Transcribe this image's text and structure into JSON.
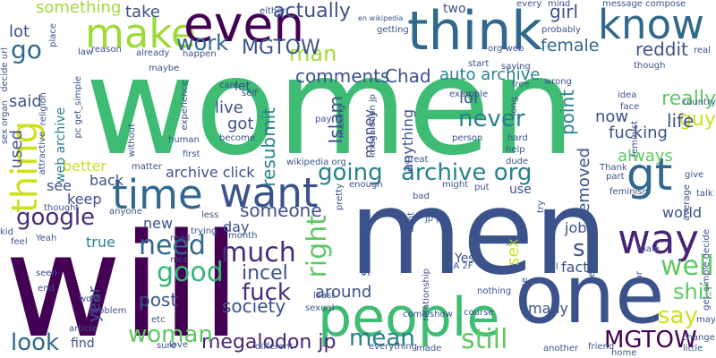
{
  "words": [
    {
      "t": "women",
      "c": "#3fbc73"
    },
    {
      "t": "men",
      "c": "#3b528b"
    },
    {
      "t": "will",
      "c": "#440154"
    },
    {
      "t": "one",
      "c": "#3b528b"
    },
    {
      "t": "people",
      "c": "#3fbc73"
    },
    {
      "t": "think",
      "c": "#31688e"
    },
    {
      "t": "know",
      "c": "#31688e"
    },
    {
      "t": "make",
      "c": "#a0da39"
    },
    {
      "t": "even",
      "c": "#440154"
    },
    {
      "t": "time",
      "c": "#31688e"
    },
    {
      "t": "want",
      "c": "#3b528b"
    },
    {
      "t": "gt",
      "c": "#31688e"
    },
    {
      "t": "way",
      "c": "#482475"
    },
    {
      "t": "thing",
      "c": "#cde11d"
    },
    {
      "t": "archive org",
      "c": "#26828e"
    },
    {
      "t": "going",
      "c": "#26828e"
    },
    {
      "t": "google",
      "c": "#472d7b"
    },
    {
      "t": "need",
      "c": "#31688e"
    },
    {
      "t": "much",
      "c": "#472d7b"
    },
    {
      "t": "good",
      "c": "#35b779"
    },
    {
      "t": "right",
      "c": "#5ec962"
    },
    {
      "t": "well",
      "c": "#5ec962"
    },
    {
      "t": "say",
      "c": "#cde11d"
    },
    {
      "t": "still",
      "c": "#5ec962"
    },
    {
      "t": "mean",
      "c": "#26828e"
    },
    {
      "t": "MGTOW",
      "c": "#440154"
    },
    {
      "t": "megalodon jp",
      "c": "#482475"
    },
    {
      "t": "woman",
      "c": "#5ec962"
    },
    {
      "t": "look",
      "c": "#31688e"
    },
    {
      "t": "shit",
      "c": "#5ec962"
    },
    {
      "t": "fuck",
      "c": "#472d7b"
    },
    {
      "t": "work",
      "c": "#31688e"
    },
    {
      "t": "man",
      "c": "#a0da39"
    },
    {
      "t": "really",
      "c": "#5ec962"
    },
    {
      "t": "guy",
      "c": "#cde11d"
    },
    {
      "t": "life",
      "c": "#3b528b"
    },
    {
      "t": "never",
      "c": "#26828e"
    },
    {
      "t": "go",
      "c": "#31688e"
    },
    {
      "t": "s",
      "c": "#3b528b"
    },
    {
      "t": "actually",
      "c": "#3b528b"
    },
    {
      "t": "reddit",
      "c": "#3b528b"
    },
    {
      "t": "girl",
      "c": "#3b528b"
    },
    {
      "t": "female",
      "c": "#31688e"
    },
    {
      "t": "MGTOW",
      "c": "#3b528b"
    },
    {
      "t": "comments",
      "c": "#3b528b"
    },
    {
      "t": "auto archive",
      "c": "#26828e"
    },
    {
      "t": "Chad",
      "c": "#3b528b"
    },
    {
      "t": "lol",
      "c": "#3b528b"
    },
    {
      "t": "something",
      "c": "#a0da39"
    },
    {
      "t": "take",
      "c": "#3b528b"
    },
    {
      "t": "lot",
      "c": "#3b528b"
    },
    {
      "t": "said",
      "c": "#3b528b"
    },
    {
      "t": "used",
      "c": "#3b528b"
    },
    {
      "t": "see",
      "c": "#3b528b"
    },
    {
      "t": "resubmit",
      "c": "#26828e"
    },
    {
      "t": "Islam",
      "c": "#3b528b"
    },
    {
      "t": "point",
      "c": "#26828e"
    },
    {
      "t": "removed",
      "c": "#3b528b"
    },
    {
      "t": "now",
      "c": "#3b528b"
    },
    {
      "t": "fucking",
      "c": "#3b528b"
    },
    {
      "t": "always",
      "c": "#5ec962"
    },
    {
      "t": "archive click",
      "c": "#3b528b"
    },
    {
      "t": "better",
      "c": "#cde11d"
    },
    {
      "t": "back",
      "c": "#3b528b"
    },
    {
      "t": "keep",
      "c": "#3b528b"
    },
    {
      "t": "new",
      "c": "#3b528b"
    },
    {
      "t": "true",
      "c": "#26828e"
    },
    {
      "t": "day",
      "c": "#3b528b"
    },
    {
      "t": "someone",
      "c": "#3b528b"
    },
    {
      "t": "incel",
      "c": "#3b528b"
    },
    {
      "t": "post",
      "c": "#3b528b"
    },
    {
      "t": "society",
      "c": "#3b528b"
    },
    {
      "t": "year",
      "c": "#3b528b"
    },
    {
      "t": "around",
      "c": "#3b528b"
    },
    {
      "t": "find",
      "c": "#3b528b"
    },
    {
      "t": "job",
      "c": "#3b528b"
    },
    {
      "t": "fact",
      "c": "#3b528b"
    },
    {
      "t": "many",
      "c": "#3b528b"
    },
    {
      "t": "world",
      "c": "#3b528b"
    },
    {
      "t": "sex",
      "c": "#cde11d"
    },
    {
      "t": "use",
      "c": "#3b528b"
    },
    {
      "t": "live",
      "c": "#3b528b"
    },
    {
      "t": "got",
      "c": "#3b528b"
    },
    {
      "t": "let",
      "c": "#3b528b"
    },
    {
      "t": "money",
      "c": "#3b528b"
    },
    {
      "t": "anything",
      "c": "#3b528b"
    },
    {
      "t": "web archive",
      "c": "#26828e"
    },
    {
      "t": "seem",
      "c": "#3b528b"
    },
    {
      "t": "Yes",
      "c": "#3b528b"
    },
    {
      "t": "two",
      "c": "#3b528b"
    },
    {
      "t": "either",
      "c": "#3b528b"
    },
    {
      "t": "en wikipedia",
      "c": "#3b528b"
    },
    {
      "t": "every",
      "c": "#3b528b"
    },
    {
      "t": "mind",
      "c": "#3b528b"
    },
    {
      "t": "message compose",
      "c": "#3b528b"
    },
    {
      "t": "probably",
      "c": "#3b528b"
    },
    {
      "t": "getting",
      "c": "#3b528b"
    },
    {
      "t": "reason",
      "c": "#3b528b"
    },
    {
      "t": "already",
      "c": "#3b528b"
    },
    {
      "t": "happen",
      "c": "#3b528b"
    },
    {
      "t": "start",
      "c": "#3b528b"
    },
    {
      "t": "saying",
      "c": "#3b528b"
    },
    {
      "t": "real",
      "c": "#3b528b"
    },
    {
      "t": "though",
      "c": "#3b528b"
    },
    {
      "t": "care",
      "c": "#3b528b"
    },
    {
      "t": "self",
      "c": "#3b528b"
    },
    {
      "t": "wrong",
      "c": "#3b528b"
    },
    {
      "t": "free",
      "c": "#3b528b"
    },
    {
      "t": "example",
      "c": "#3b528b"
    },
    {
      "t": "idea",
      "c": "#3b528b"
    },
    {
      "t": "face",
      "c": "#3b528b"
    },
    {
      "t": "feminist",
      "c": "#3b528b"
    },
    {
      "t": "hard",
      "c": "#3b528b"
    },
    {
      "t": "help",
      "c": "#3b528b"
    },
    {
      "t": "person",
      "c": "#3b528b"
    },
    {
      "t": "dude",
      "c": "#3b528b"
    },
    {
      "t": "great",
      "c": "#3b528b"
    },
    {
      "t": "human",
      "c": "#3b528b"
    },
    {
      "t": "first",
      "c": "#3b528b"
    },
    {
      "t": "become",
      "c": "#3b528b"
    },
    {
      "t": "pay",
      "c": "#3b528b"
    },
    {
      "t": "Thank",
      "c": "#3b528b"
    },
    {
      "t": "part",
      "c": "#3b528b"
    },
    {
      "t": "feminism",
      "c": "#3b528b"
    },
    {
      "t": "give",
      "c": "#3b528b"
    },
    {
      "t": "talk",
      "c": "#3b528b"
    },
    {
      "t": "average",
      "c": "#3b528b"
    },
    {
      "t": "believe",
      "c": "#3b528b"
    },
    {
      "t": "male",
      "c": "#3b528b"
    },
    {
      "t": "far",
      "c": "#3b528b"
    },
    {
      "t": "course",
      "c": "#3b528b"
    },
    {
      "t": "relationship",
      "c": "#3b528b"
    },
    {
      "t": "tell",
      "c": "#3b528b"
    },
    {
      "t": "case",
      "c": "#3b528b"
    },
    {
      "t": "3A 2F",
      "c": "#3b528b"
    },
    {
      "t": "might",
      "c": "#3b528b"
    },
    {
      "t": "put",
      "c": "#3b528b"
    },
    {
      "t": "bad",
      "c": "#3b528b"
    },
    {
      "t": "enough",
      "c": "#3b528b"
    },
    {
      "t": "thought",
      "c": "#3b528b"
    },
    {
      "t": "anyone",
      "c": "#3b528b"
    },
    {
      "t": "trying",
      "c": "#3b528b"
    },
    {
      "t": "less",
      "c": "#3b528b"
    },
    {
      "t": "month",
      "c": "#3b528b"
    },
    {
      "t": "nice",
      "c": "#3b528b"
    },
    {
      "t": "read",
      "c": "#3b528b"
    },
    {
      "t": "feel",
      "c": "#3b528b"
    },
    {
      "t": "Yeah",
      "c": "#3b528b"
    },
    {
      "t": "kid",
      "c": "#3b528b"
    },
    {
      "t": "seen",
      "c": "#3b528b"
    },
    {
      "t": "end",
      "c": "#3b528b"
    },
    {
      "t": "problem",
      "c": "#3b528b"
    },
    {
      "t": "etc",
      "c": "#3b528b"
    },
    {
      "t": "word",
      "c": "#3b528b"
    },
    {
      "t": "article",
      "c": "#3b528b"
    },
    {
      "t": "sure",
      "c": "#3b528b"
    },
    {
      "t": "love",
      "c": "#3b528b"
    },
    {
      "t": "different",
      "c": "#3b528b"
    },
    {
      "t": "least",
      "c": "#3b528b"
    },
    {
      "t": "sexual",
      "c": "#3b528b"
    },
    {
      "t": "come",
      "c": "#3b528b"
    },
    {
      "t": "show",
      "c": "#3b528b"
    },
    {
      "t": "nothing",
      "c": "#3b528b"
    },
    {
      "t": "made",
      "c": "#3b528b"
    },
    {
      "t": "everything",
      "c": "#3b528b"
    },
    {
      "t": "another",
      "c": "#3b528b"
    },
    {
      "t": "friend",
      "c": "#3b528b"
    },
    {
      "t": "home",
      "c": "#3b528b"
    },
    {
      "t": "little",
      "c": "#3b528b"
    },
    {
      "t": "change",
      "c": "#3b528b"
    },
    {
      "t": "may",
      "c": "#3b528b"
    },
    {
      "t": "pretty",
      "c": "#3b528b"
    },
    {
      "t": "jp pc",
      "c": "#3b528b"
    },
    {
      "t": "place",
      "c": "#3b528b"
    },
    {
      "t": "law",
      "c": "#3b528b"
    },
    {
      "t": "decide url",
      "c": "#3b528b"
    },
    {
      "t": "sex organ",
      "c": "#3b528b"
    },
    {
      "t": "pc get_simple",
      "c": "#3b528b"
    },
    {
      "t": "maybe",
      "c": "#3b528b"
    },
    {
      "t": "religion",
      "c": "#3b528b"
    },
    {
      "t": "attractive",
      "c": "#3b528b"
    },
    {
      "t": "experience",
      "c": "#3b528b"
    },
    {
      "t": "without",
      "c": "#3b528b"
    },
    {
      "t": "matter",
      "c": "#3b528b"
    },
    {
      "t": "wikipedia org",
      "c": "#3b528b"
    },
    {
      "t": "making",
      "c": "#3b528b"
    },
    {
      "t": "dont",
      "c": "#3b528b"
    },
    {
      "t": "megalodon jp",
      "c": "#3b528b"
    },
    {
      "t": "long",
      "c": "#3b528b"
    },
    {
      "t": "everyone",
      "c": "#3b528b"
    },
    {
      "t": "try",
      "c": "#3b528b"
    },
    {
      "t": "country",
      "c": "#3b528b"
    },
    {
      "t": "get_simple decide",
      "c": "#3b528b"
    },
    {
      "t": "org web",
      "c": "#3b528b"
    }
  ]
}
